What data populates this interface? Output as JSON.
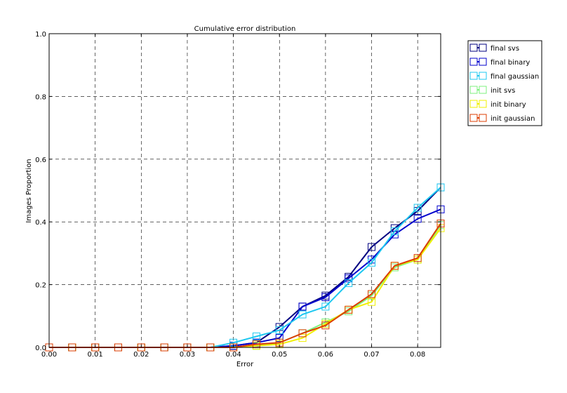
{
  "chart_data": {
    "type": "line",
    "title": "Cumulative error distribution",
    "xlabel": "Error",
    "ylabel": "Images Proportion",
    "xlim": [
      0.0,
      0.085
    ],
    "ylim": [
      0.0,
      1.0
    ],
    "x_ticks": [
      0.0,
      0.01,
      0.02,
      0.03,
      0.04,
      0.05,
      0.06,
      0.07,
      0.08
    ],
    "x_tick_labels": [
      "0.00",
      "0.01",
      "0.02",
      "0.03",
      "0.04",
      "0.05",
      "0.06",
      "0.07",
      "0.08"
    ],
    "y_ticks": [
      0.0,
      0.2,
      0.4,
      0.6,
      0.8,
      1.0
    ],
    "y_tick_labels": [
      "0.0",
      "0.2",
      "0.4",
      "0.6",
      "0.8",
      "1.0"
    ],
    "grid": true,
    "legend_position": "outside-top-right",
    "x": [
      0.0,
      0.005,
      0.01,
      0.015,
      0.02,
      0.025,
      0.03,
      0.035,
      0.04,
      0.045,
      0.05,
      0.055,
      0.06,
      0.065,
      0.07,
      0.075,
      0.08,
      0.085
    ],
    "series": [
      {
        "name": "final svs",
        "color": "#000080",
        "values": [
          0,
          0,
          0,
          0,
          0,
          0,
          0,
          0,
          0.005,
          0.015,
          0.065,
          0.13,
          0.165,
          0.225,
          0.32,
          0.38,
          0.435,
          0.51
        ]
      },
      {
        "name": "final binary",
        "color": "#0000cc",
        "values": [
          0,
          0,
          0,
          0,
          0,
          0,
          0,
          0,
          0.005,
          0.015,
          0.03,
          0.13,
          0.16,
          0.22,
          0.28,
          0.36,
          0.41,
          0.44
        ]
      },
      {
        "name": "final gaussian",
        "color": "#1ec8f0",
        "values": [
          0,
          0,
          0,
          0,
          0,
          0,
          0,
          0,
          0.015,
          0.035,
          0.055,
          0.105,
          0.13,
          0.205,
          0.27,
          0.37,
          0.445,
          0.51
        ]
      },
      {
        "name": "init svs",
        "color": "#7cf27c",
        "values": [
          0,
          0,
          0,
          0,
          0,
          0,
          0,
          0,
          0.0,
          0.005,
          0.015,
          0.045,
          0.08,
          0.115,
          0.165,
          0.255,
          0.28,
          0.39
        ]
      },
      {
        "name": "init binary",
        "color": "#f0f000",
        "values": [
          0,
          0,
          0,
          0,
          0,
          0,
          0,
          0,
          0.0,
          0.005,
          0.01,
          0.03,
          0.075,
          0.12,
          0.145,
          0.26,
          0.28,
          0.38
        ]
      },
      {
        "name": "init gaussian",
        "color": "#dd3c00",
        "values": [
          0,
          0,
          0,
          0,
          0,
          0,
          0,
          0,
          0.0,
          0.01,
          0.015,
          0.045,
          0.07,
          0.12,
          0.17,
          0.26,
          0.285,
          0.395
        ]
      }
    ]
  }
}
